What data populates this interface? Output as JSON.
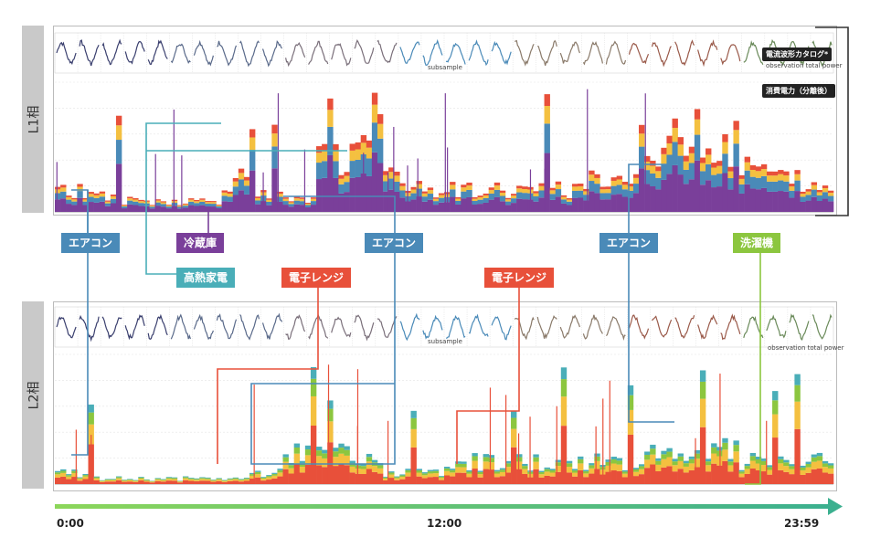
{
  "phases": [
    {
      "label": "L1相"
    },
    {
      "label": "L2相"
    }
  ],
  "legend": {
    "catalog": "電流波形カタログ*",
    "power": "消費電力（分離後）",
    "observation": "observation total power"
  },
  "sample_label": "subsample",
  "tags": [
    {
      "label": "エアコン",
      "color": "#4a8ab8"
    },
    {
      "label": "冷蔵庫",
      "color": "#7a3f9a"
    },
    {
      "label": "エアコン",
      "color": "#4a8ab8"
    },
    {
      "label": "エアコン",
      "color": "#4a8ab8"
    },
    {
      "label": "洗濯機",
      "color": "#8cc63f"
    },
    {
      "label": "高熱家電",
      "color": "#4aaeb8"
    },
    {
      "label": "電子レンジ",
      "color": "#e8503a"
    },
    {
      "label": "電子レンジ",
      "color": "#e8503a"
    }
  ],
  "timeline": {
    "start": "0:00",
    "mid": "12:00",
    "end": "23:59"
  },
  "colors": {
    "aircon": "#4a8ab8",
    "fridge": "#7a3f9a",
    "heater": "#4aaeb8",
    "microwave": "#e8503a",
    "washer": "#8cc63f",
    "timeline_start": "#8cd65a",
    "timeline_end": "#3bb08f"
  },
  "chart_data": [
    {
      "type": "area",
      "title": "",
      "xlabel": "",
      "ylabel": "",
      "x_range": [
        "0:00",
        "23:59"
      ],
      "series": [
        {
          "name": "消費電力（分離後）",
          "x": [
            0,
            1,
            2,
            3,
            4,
            5,
            6,
            7,
            8,
            9,
            10,
            11,
            12,
            13,
            14,
            15,
            16,
            17,
            18,
            19,
            20,
            21,
            22,
            23
          ],
          "values": [
            0.2,
            0.15,
            0.1,
            0.1,
            0.1,
            0.3,
            0.15,
            0.1,
            0.5,
            0.8,
            0.3,
            0.2,
            0.2,
            0.2,
            0.2,
            0.2,
            0.3,
            0.3,
            0.5,
            0.8,
            0.6,
            0.4,
            0.3,
            0.2
          ]
        }
      ]
    },
    {
      "type": "area",
      "title": "",
      "xlabel": "",
      "ylabel": "",
      "x_range": [
        "0:00",
        "23:59"
      ],
      "series": [
        {
          "name": "observation total power",
          "x": [
            0,
            1,
            2,
            3,
            4,
            5,
            6,
            7,
            8,
            9,
            10,
            11,
            12,
            13,
            14,
            15,
            16,
            17,
            18,
            19,
            20,
            21,
            22,
            23
          ],
          "values": [
            0.1,
            0.05,
            0.05,
            0.05,
            0.05,
            0.05,
            0.1,
            0.3,
            0.3,
            0.2,
            0.1,
            0.1,
            0.2,
            0.2,
            0.2,
            0.2,
            0.2,
            0.2,
            0.3,
            0.3,
            0.3,
            0.2,
            0.2,
            0.2
          ]
        }
      ]
    }
  ]
}
